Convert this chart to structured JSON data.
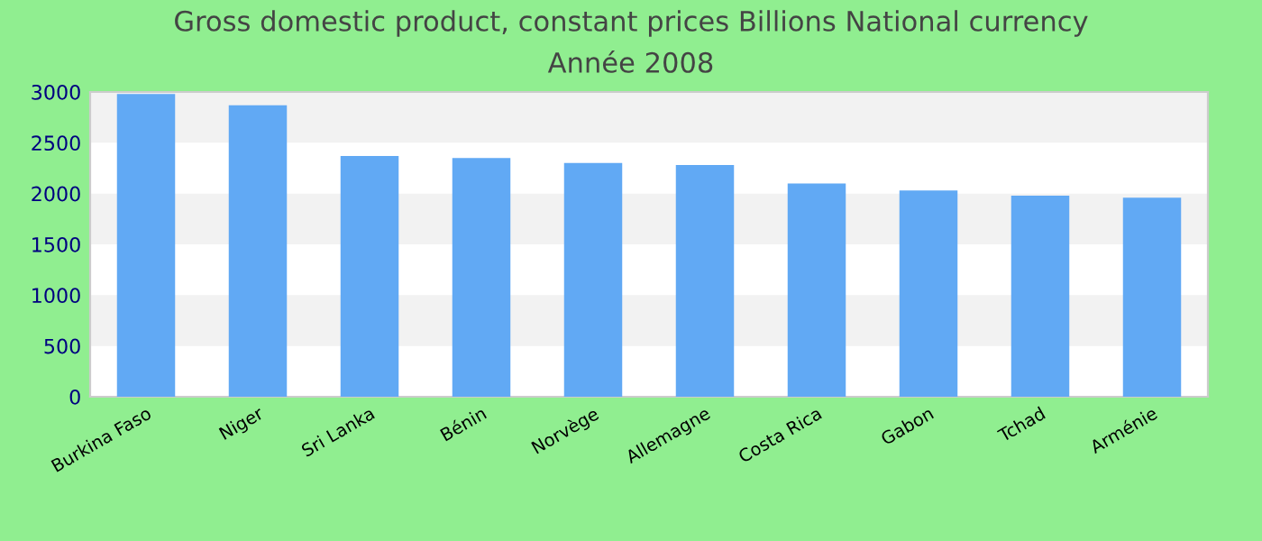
{
  "chart_data": {
    "type": "bar",
    "title": "Gross domestic product, constant prices Billions National currency",
    "subtitle": "Année 2008",
    "categories": [
      "Burkina Faso",
      "Niger",
      "Sri Lanka",
      "Bénin",
      "Norvège",
      "Allemagne",
      "Costa Rica",
      "Gabon",
      "Tchad",
      "Arménie"
    ],
    "values": [
      2980,
      2870,
      2370,
      2350,
      2300,
      2280,
      2100,
      2030,
      1980,
      1960
    ],
    "bands": [
      {
        "axis": "y",
        "from": 500,
        "to": 1000,
        "color": "#f2f2f2"
      },
      {
        "axis": "y",
        "from": 1500,
        "to": 2000,
        "color": "#f2f2f2"
      },
      {
        "axis": "y",
        "from": 2500,
        "to": 3000,
        "color": "#f2f2f2"
      }
    ],
    "color": "#61a9f4",
    "ylim": [
      0,
      3000
    ],
    "yticks": [
      0,
      500,
      1000,
      1500,
      2000,
      2500,
      3000
    ]
  }
}
